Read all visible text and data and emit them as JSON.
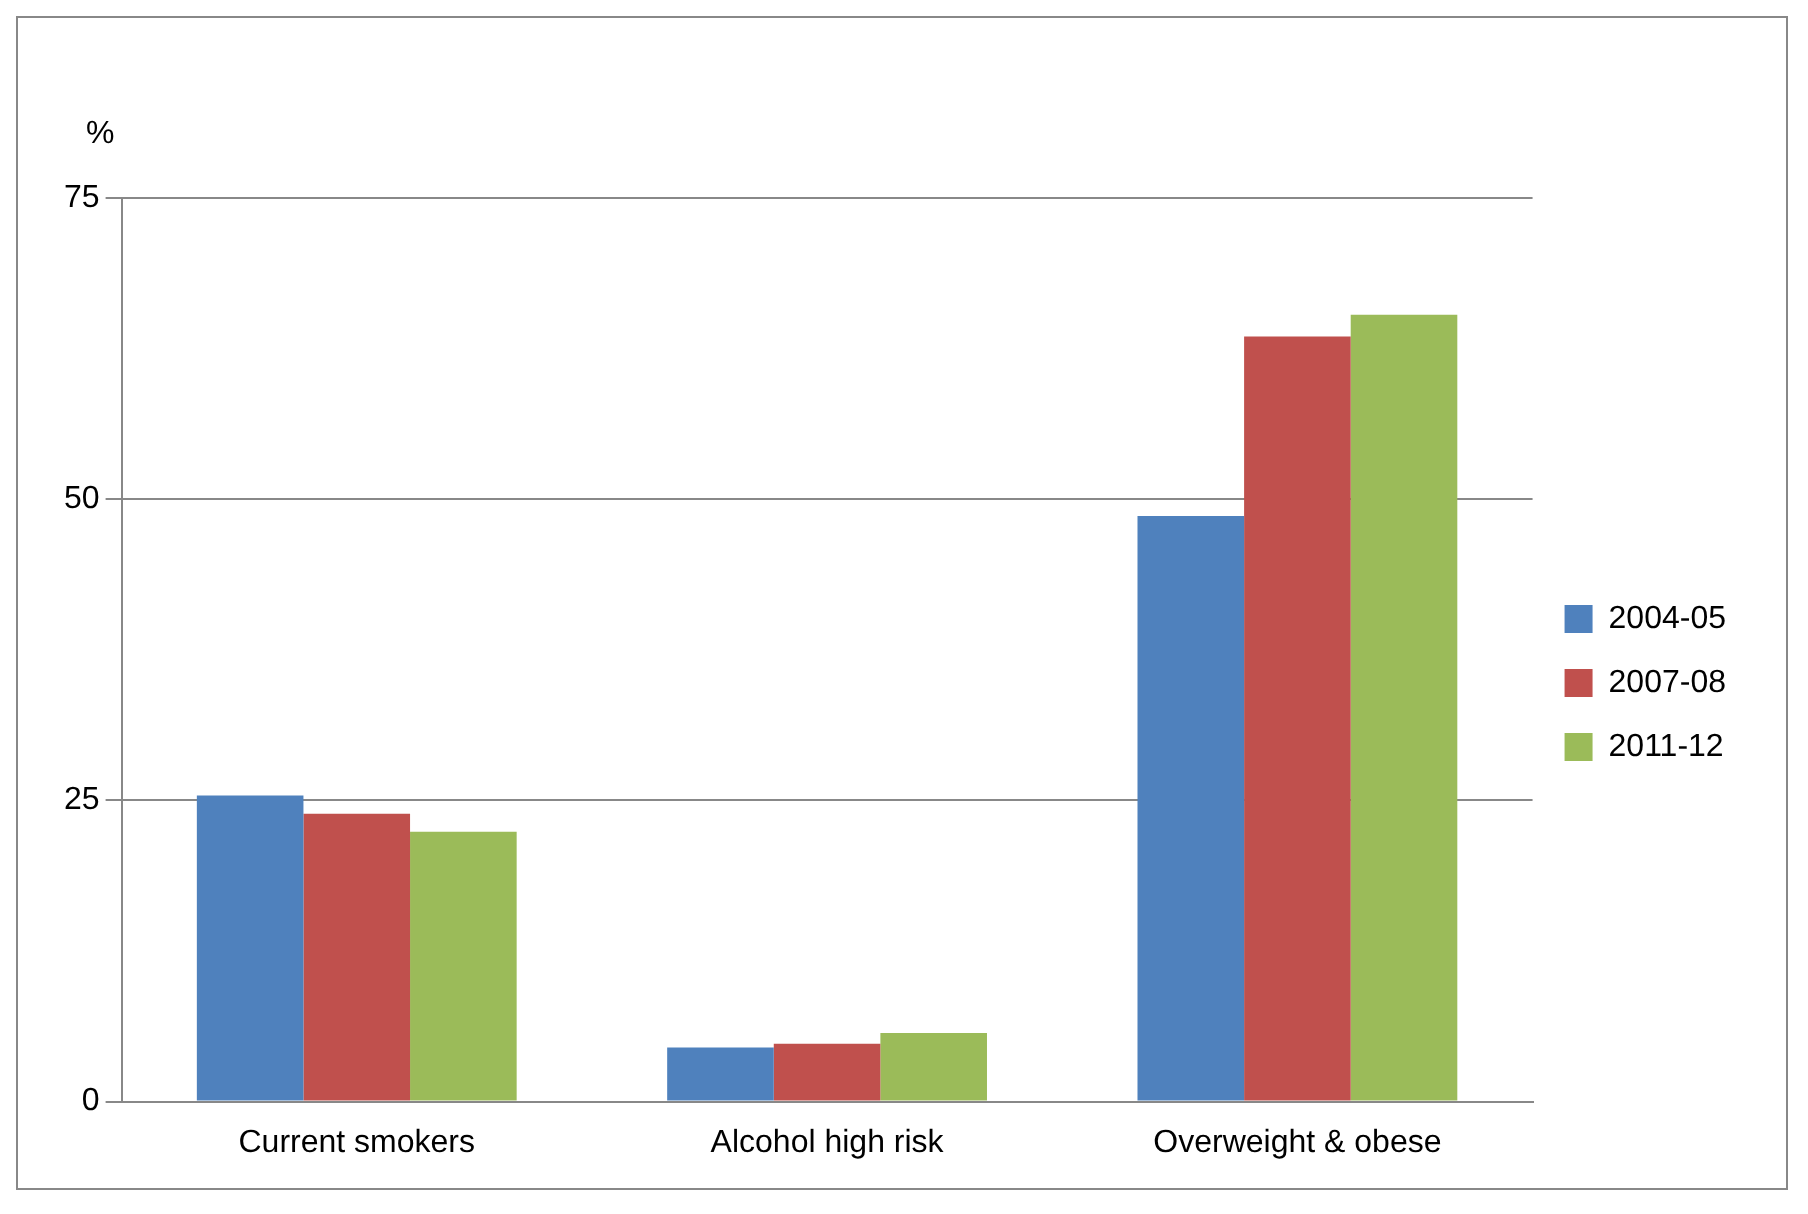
{
  "chart_data": {
    "type": "bar",
    "ylabel": "%",
    "categories": [
      "Current smokers",
      "Alcohol high risk",
      "Overweight & obese"
    ],
    "series": [
      {
        "name": "2004-05",
        "color": "#4f81bd",
        "values": [
          25.4,
          4.5,
          48.6
        ]
      },
      {
        "name": "2007-08",
        "color": "#c0504d",
        "values": [
          23.9,
          4.8,
          63.5
        ]
      },
      {
        "name": "2011-12",
        "color": "#9bbb59",
        "values": [
          22.4,
          5.7,
          65.3
        ]
      }
    ],
    "ylim": [
      0,
      75
    ],
    "yticks": [
      0,
      25,
      50,
      75
    ],
    "grid": "y",
    "legend": "right"
  }
}
